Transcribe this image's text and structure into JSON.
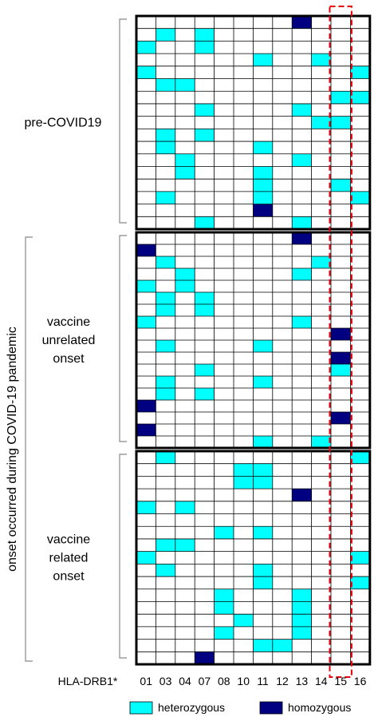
{
  "chart_data": {
    "type": "heatmap",
    "xlabel": "HLA-DRB1*",
    "categories": [
      "01",
      "03",
      "04",
      "07",
      "08",
      "10",
      "11",
      "12",
      "13",
      "14",
      "15",
      "16"
    ],
    "highlight_column": "15",
    "legend": [
      {
        "key": "het",
        "label": "heterozygous",
        "color": "#00ffff"
      },
      {
        "key": "hom",
        "label": "homozygous",
        "color": "#000080"
      }
    ],
    "outer_group_label": "onset occurred during COVID-19 pandemic",
    "panels": [
      {
        "label_lines": [
          "pre-COVID19"
        ],
        "rows": [
          {
            "het": [],
            "hom": [
              "13"
            ]
          },
          {
            "het": [
              "03",
              "07"
            ],
            "hom": []
          },
          {
            "het": [
              "01",
              "07"
            ],
            "hom": []
          },
          {
            "het": [
              "11",
              "14"
            ],
            "hom": []
          },
          {
            "het": [
              "01",
              "16"
            ],
            "hom": []
          },
          {
            "het": [
              "03",
              "04"
            ],
            "hom": []
          },
          {
            "het": [
              "15",
              "16"
            ],
            "hom": []
          },
          {
            "het": [
              "07",
              "13"
            ],
            "hom": []
          },
          {
            "het": [
              "14",
              "15"
            ],
            "hom": []
          },
          {
            "het": [
              "03",
              "07"
            ],
            "hom": []
          },
          {
            "het": [
              "03",
              "11"
            ],
            "hom": []
          },
          {
            "het": [
              "04",
              "13"
            ],
            "hom": []
          },
          {
            "het": [
              "04",
              "11"
            ],
            "hom": []
          },
          {
            "het": [
              "11",
              "15"
            ],
            "hom": []
          },
          {
            "het": [
              "03",
              "11",
              "16"
            ],
            "hom": []
          },
          {
            "het": [],
            "hom": [
              "11"
            ]
          },
          {
            "het": [
              "07",
              "13"
            ],
            "hom": []
          }
        ]
      },
      {
        "label_lines": [
          "vaccine",
          "unrelated",
          "onset"
        ],
        "rows": [
          {
            "het": [],
            "hom": [
              "13"
            ]
          },
          {
            "het": [],
            "hom": [
              "01"
            ]
          },
          {
            "het": [
              "03",
              "14"
            ],
            "hom": []
          },
          {
            "het": [
              "04",
              "13"
            ],
            "hom": []
          },
          {
            "het": [
              "01",
              "04"
            ],
            "hom": []
          },
          {
            "het": [
              "03",
              "07"
            ],
            "hom": []
          },
          {
            "het": [
              "03",
              "07"
            ],
            "hom": []
          },
          {
            "het": [
              "01",
              "13"
            ],
            "hom": []
          },
          {
            "het": [],
            "hom": [
              "15"
            ]
          },
          {
            "het": [
              "03",
              "11"
            ],
            "hom": []
          },
          {
            "het": [],
            "hom": [
              "15"
            ]
          },
          {
            "het": [
              "07",
              "15"
            ],
            "hom": []
          },
          {
            "het": [
              "03",
              "11"
            ],
            "hom": []
          },
          {
            "het": [
              "03",
              "07"
            ],
            "hom": []
          },
          {
            "het": [],
            "hom": [
              "01"
            ]
          },
          {
            "het": [],
            "hom": [
              "15"
            ]
          },
          {
            "het": [],
            "hom": [
              "01"
            ]
          },
          {
            "het": [
              "11",
              "14"
            ],
            "hom": []
          }
        ]
      },
      {
        "label_lines": [
          "vaccine",
          "related",
          "onset"
        ],
        "rows": [
          {
            "het": [
              "03",
              "16"
            ],
            "hom": []
          },
          {
            "het": [
              "10",
              "11"
            ],
            "hom": []
          },
          {
            "het": [
              "10",
              "11"
            ],
            "hom": []
          },
          {
            "het": [],
            "hom": [
              "13"
            ]
          },
          {
            "het": [
              "01",
              "04"
            ],
            "hom": []
          },
          {
            "het": [],
            "hom": []
          },
          {
            "het": [
              "08",
              "11"
            ],
            "hom": []
          },
          {
            "het": [
              "03",
              "04"
            ],
            "hom": []
          },
          {
            "het": [
              "01",
              "16"
            ],
            "hom": []
          },
          {
            "het": [
              "03",
              "11"
            ],
            "hom": []
          },
          {
            "het": [
              "11",
              "16"
            ],
            "hom": []
          },
          {
            "het": [
              "08",
              "13"
            ],
            "hom": []
          },
          {
            "het": [
              "08",
              "13"
            ],
            "hom": []
          },
          {
            "het": [
              "10",
              "13"
            ],
            "hom": []
          },
          {
            "het": [
              "08",
              "13"
            ],
            "hom": []
          },
          {
            "het": [
              "11",
              "12"
            ],
            "hom": []
          },
          {
            "het": [],
            "hom": [
              "07"
            ]
          }
        ]
      }
    ]
  }
}
